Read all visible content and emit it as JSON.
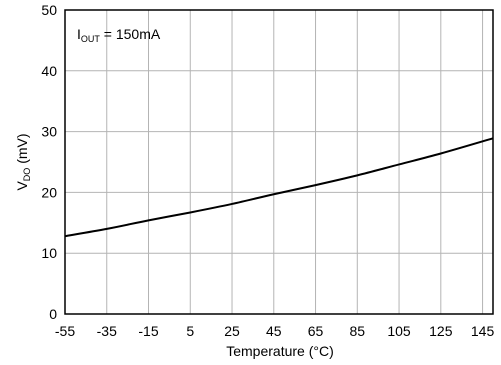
{
  "chart_data": {
    "type": "line",
    "xlabel": "Temperature (°C)",
    "ylabel_main": "V",
    "ylabel_sub": "DO",
    "ylabel_unit": " (mV)",
    "xlim": [
      -55,
      150
    ],
    "ylim": [
      0,
      50
    ],
    "xticks": [
      "-55",
      "-35",
      "-15",
      "5",
      "25",
      "45",
      "65",
      "85",
      "105",
      "125",
      "145"
    ],
    "xtick_values": [
      -55,
      -35,
      -15,
      5,
      25,
      45,
      65,
      85,
      105,
      125,
      145
    ],
    "yticks": [
      "0",
      "10",
      "20",
      "30",
      "40",
      "50"
    ],
    "ytick_values": [
      0,
      10,
      20,
      30,
      40,
      50
    ],
    "grid": true,
    "annotation": {
      "main": "I",
      "sub": "OUT",
      "rest": " = 150mA"
    },
    "series": [
      {
        "x": [
          -55,
          -35,
          -15,
          5,
          25,
          45,
          65,
          85,
          105,
          125,
          150
        ],
        "y": [
          12.8,
          14.0,
          15.4,
          16.7,
          18.1,
          19.7,
          21.2,
          22.8,
          24.6,
          26.4,
          28.9
        ]
      }
    ]
  }
}
